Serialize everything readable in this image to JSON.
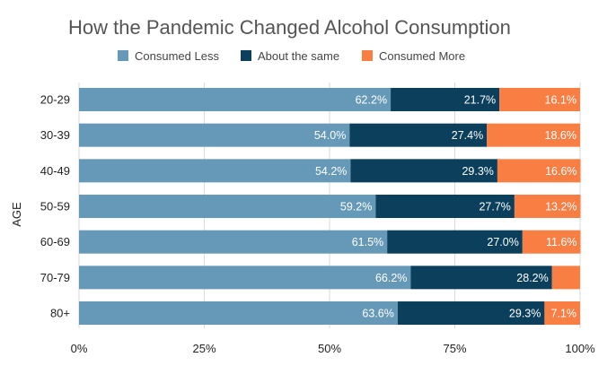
{
  "chart_data": {
    "type": "bar",
    "orientation": "horizontal",
    "stacked": true,
    "title": "How the Pandemic Changed Alcohol Consumption",
    "xlabel": "",
    "ylabel": "AGE",
    "xlim": [
      0,
      100
    ],
    "xticks": [
      "0%",
      "25%",
      "50%",
      "75%",
      "100%"
    ],
    "legend_position": "top",
    "grid": "vertical",
    "categories": [
      "20-29",
      "30-39",
      "40-49",
      "50-59",
      "60-69",
      "70-79",
      "80+"
    ],
    "series": [
      {
        "name": "Consumed Less",
        "color": "#6599b7",
        "values": [
          62.2,
          54.0,
          54.2,
          59.2,
          61.5,
          66.2,
          63.6
        ],
        "labels": [
          "62.2%",
          "54.0%",
          "54.2%",
          "59.2%",
          "61.5%",
          "66.2%",
          "63.6%"
        ]
      },
      {
        "name": "About the same",
        "color": "#0b3f5c",
        "values": [
          21.7,
          27.4,
          29.3,
          27.7,
          27.0,
          28.2,
          29.3
        ],
        "labels": [
          "21.7%",
          "27.4%",
          "29.3%",
          "27.7%",
          "27.0%",
          "28.2%",
          "29.3%"
        ]
      },
      {
        "name": "Consumed More",
        "color": "#f97e44",
        "values": [
          16.1,
          18.6,
          16.6,
          13.2,
          11.6,
          5.6,
          7.1
        ],
        "labels": [
          "16.1%",
          "18.6%",
          "16.6%",
          "13.2%",
          "11.6%",
          "",
          "7.1%"
        ]
      }
    ]
  }
}
